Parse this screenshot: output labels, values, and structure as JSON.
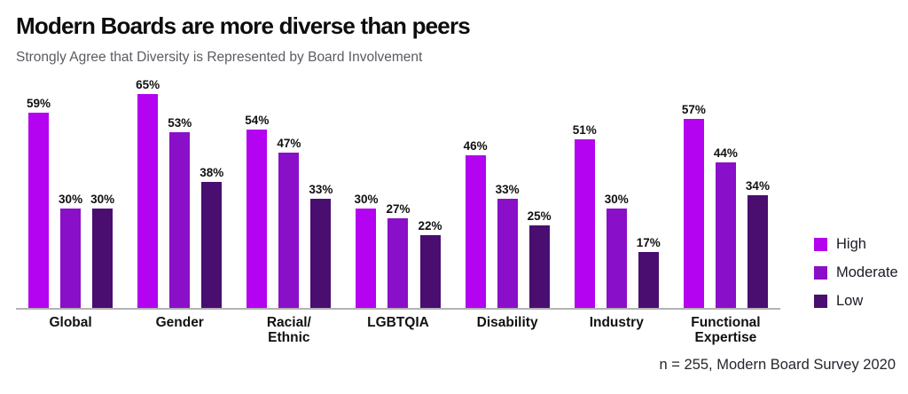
{
  "chart_data": {
    "type": "bar",
    "title": "Modern Boards are more diverse than peers",
    "subtitle": "Strongly Agree that Diversity is Represented by Board Involvement",
    "categories": [
      "Global",
      "Gender",
      "Racial/\nEthnic",
      "LGBTQIA",
      "Disability",
      "Industry",
      "Functional\nExpertise"
    ],
    "series": [
      {
        "name": "High",
        "color": "#b303f0",
        "values": [
          59,
          65,
          54,
          30,
          46,
          51,
          57
        ]
      },
      {
        "name": "Moderate",
        "color": "#8a0fc8",
        "values": [
          30,
          53,
          47,
          27,
          33,
          30,
          44
        ]
      },
      {
        "name": "Low",
        "color": "#4a0d70",
        "values": [
          30,
          38,
          33,
          22,
          25,
          17,
          34
        ]
      }
    ],
    "value_suffix": "%",
    "xlabel": "",
    "ylabel": "",
    "ylim": [
      0,
      70
    ],
    "grid": false,
    "legend_position": "right",
    "footnote": "n = 255, Modern Board Survey 2020"
  },
  "colors": {
    "title": "#0d0d0d",
    "subtitle": "#5b5b63",
    "axis_line": "#b3b3b3",
    "high": "#b303f0",
    "moderate": "#8a0fc8",
    "low": "#4a0d70"
  }
}
